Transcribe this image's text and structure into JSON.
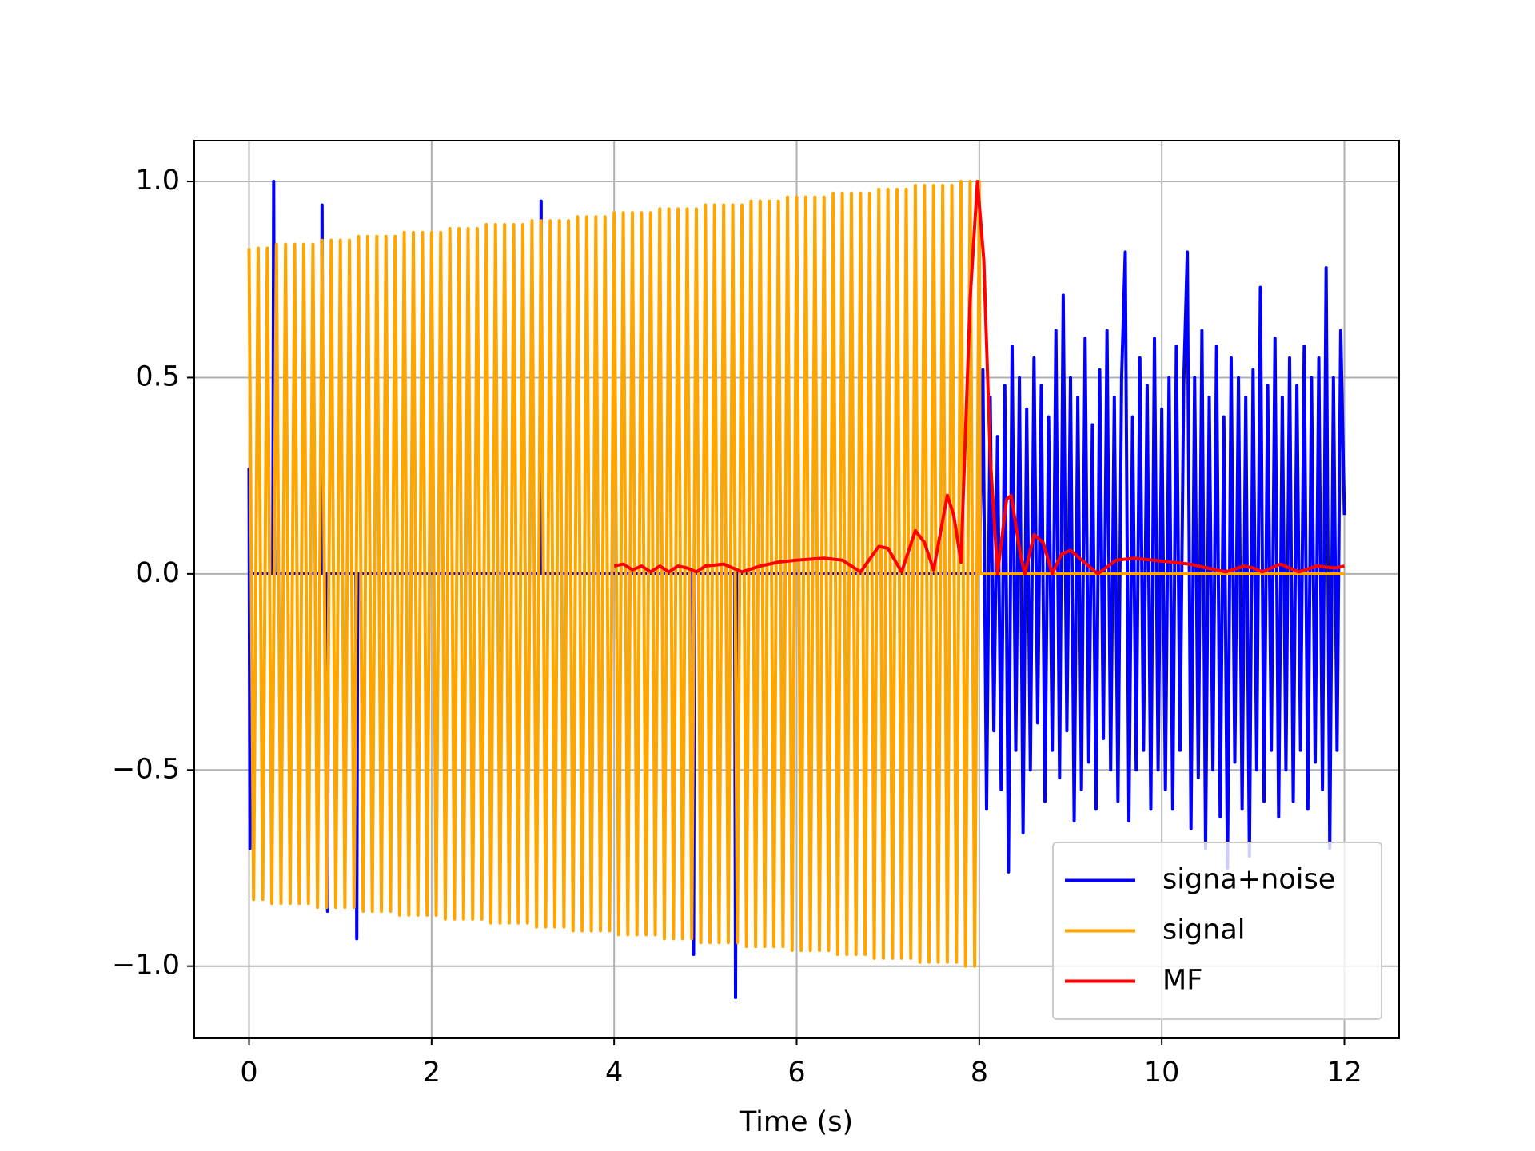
{
  "chart_data": {
    "type": "line",
    "xlabel": "Time (s)",
    "xlim": [
      -0.6,
      12.6
    ],
    "ylim": [
      -1.184,
      1.104
    ],
    "xticks": [
      0,
      2,
      4,
      6,
      8,
      10,
      12
    ],
    "yticks": [
      {
        "value": -1,
        "label": "−1.0"
      },
      {
        "value": -0.5,
        "label": "−0.5"
      },
      {
        "value": 0,
        "label": "0.0"
      },
      0.5,
      {
        "value": 1,
        "label": "1.0"
      }
    ],
    "grid": true,
    "legend": "lower right",
    "series": [
      {
        "name": "signa+noise",
        "color": "#0000ff",
        "x": [
          0,
          0.01,
          0.02,
          0.26,
          0.27,
          0.28,
          0.79,
          0.8,
          0.81,
          0.85,
          0.86,
          0.87,
          1.17,
          1.18,
          1.19,
          3.19,
          3.2,
          3.21,
          4.86,
          4.87,
          4.88,
          5.32,
          5.33,
          5.34,
          8.0,
          8.04,
          8.08,
          8.12,
          8.16,
          8.2,
          8.24,
          8.28,
          8.32,
          8.36,
          8.4,
          8.44,
          8.48,
          8.52,
          8.56,
          8.6,
          8.64,
          8.68,
          8.72,
          8.76,
          8.8,
          8.84,
          8.88,
          8.92,
          8.96,
          9.0,
          9.04,
          9.08,
          9.12,
          9.16,
          9.2,
          9.24,
          9.28,
          9.32,
          9.36,
          9.4,
          9.44,
          9.48,
          9.52,
          9.56,
          9.6,
          9.64,
          9.68,
          9.72,
          9.76,
          9.8,
          9.84,
          9.88,
          9.92,
          9.96,
          10.0,
          10.04,
          10.08,
          10.12,
          10.16,
          10.2,
          10.24,
          10.28,
          10.32,
          10.36,
          10.4,
          10.44,
          10.48,
          10.52,
          10.56,
          10.6,
          10.64,
          10.68,
          10.72,
          10.76,
          10.8,
          10.84,
          10.88,
          10.92,
          10.96,
          11.0,
          11.04,
          11.08,
          11.12,
          11.16,
          11.2,
          11.24,
          11.28,
          11.32,
          11.36,
          11.4,
          11.44,
          11.48,
          11.52,
          11.56,
          11.6,
          11.64,
          11.68,
          11.72,
          11.76,
          11.8,
          11.84,
          11.88,
          11.92,
          11.96,
          12.0
        ],
        "values": [
          0.27,
          -0.7,
          0,
          0,
          1.0,
          0,
          0,
          0.94,
          0,
          0,
          -0.86,
          0,
          0,
          -0.93,
          0,
          0,
          0.95,
          0,
          0,
          -0.97,
          0,
          0,
          -1.08,
          0,
          0,
          0.52,
          -0.6,
          0.45,
          -0.4,
          0.35,
          -0.55,
          0.48,
          -0.76,
          0.58,
          -0.45,
          0.5,
          -0.66,
          0.42,
          -0.5,
          0.55,
          -0.38,
          0.48,
          -0.58,
          0.4,
          -0.45,
          0.62,
          -0.52,
          0.71,
          -0.4,
          0.5,
          -0.63,
          0.45,
          -0.55,
          0.6,
          -0.48,
          0.38,
          -0.6,
          0.52,
          -0.42,
          0.62,
          -0.5,
          0.45,
          -0.58,
          0.5,
          0.82,
          -0.63,
          0.4,
          -0.5,
          0.55,
          -0.45,
          0.48,
          -0.6,
          0.6,
          -0.5,
          0.42,
          -0.55,
          0.5,
          -0.6,
          0.58,
          -0.45,
          0.48,
          0.82,
          -0.65,
          0.5,
          -0.52,
          0.62,
          -0.7,
          0.45,
          -0.5,
          0.58,
          -0.62,
          0.4,
          -0.75,
          0.55,
          -0.48,
          0.5,
          -0.6,
          0.45,
          -0.72,
          0.52,
          -0.5,
          0.73,
          -0.58,
          0.48,
          -0.45,
          0.6,
          -0.62,
          0.45,
          -0.5,
          0.55,
          -0.58,
          0.48,
          -0.45,
          0.58,
          -0.6,
          0.5,
          -0.48,
          0.55,
          -0.55,
          0.78,
          -0.7,
          0.5,
          -0.45,
          0.62,
          0.15
        ]
      },
      {
        "name": "signal",
        "color": "#ffa500",
        "x": [
          0,
          0.05,
          0.1,
          0.15,
          0.2,
          0.25,
          0.3,
          0.35,
          0.4,
          0.45,
          0.5,
          0.55,
          0.6,
          0.65,
          0.7,
          0.75,
          0.8,
          0.85,
          0.9,
          0.95,
          1.0,
          1.05,
          1.1,
          1.15,
          1.2,
          1.25,
          1.3,
          1.35,
          1.4,
          1.45,
          1.5,
          1.55,
          1.6,
          1.65,
          1.7,
          1.75,
          1.8,
          1.85,
          1.9,
          1.95,
          2.0,
          2.05,
          2.1,
          2.15,
          2.2,
          2.25,
          2.3,
          2.35,
          2.4,
          2.45,
          2.5,
          2.55,
          2.6,
          2.65,
          2.7,
          2.75,
          2.8,
          2.85,
          2.9,
          2.95,
          3.0,
          3.05,
          3.1,
          3.15,
          3.2,
          3.25,
          3.3,
          3.35,
          3.4,
          3.45,
          3.5,
          3.55,
          3.6,
          3.65,
          3.7,
          3.75,
          3.8,
          3.85,
          3.9,
          3.95,
          4.0,
          4.05,
          4.1,
          4.15,
          4.2,
          4.25,
          4.3,
          4.35,
          4.4,
          4.45,
          4.5,
          4.55,
          4.6,
          4.65,
          4.7,
          4.75,
          4.8,
          4.85,
          4.9,
          4.95,
          5.0,
          5.05,
          5.1,
          5.15,
          5.2,
          5.25,
          5.3,
          5.35,
          5.4,
          5.45,
          5.5,
          5.55,
          5.6,
          5.65,
          5.7,
          5.75,
          5.8,
          5.85,
          5.9,
          5.95,
          6.0,
          6.05,
          6.1,
          6.15,
          6.2,
          6.25,
          6.3,
          6.35,
          6.4,
          6.45,
          6.5,
          6.55,
          6.6,
          6.65,
          6.7,
          6.75,
          6.8,
          6.85,
          6.9,
          6.95,
          7.0,
          7.05,
          7.1,
          7.15,
          7.2,
          7.25,
          7.3,
          7.35,
          7.4,
          7.45,
          7.5,
          7.55,
          7.6,
          7.65,
          7.7,
          7.75,
          7.8,
          7.85,
          7.9,
          7.95,
          8.0,
          8.01,
          12.0
        ],
        "values": [
          0.83,
          -0.83,
          0.83,
          -0.83,
          0.83,
          -0.84,
          0.84,
          -0.84,
          0.84,
          -0.84,
          0.84,
          -0.84,
          0.84,
          -0.84,
          0.84,
          -0.85,
          0.85,
          -0.85,
          0.85,
          -0.85,
          0.85,
          -0.85,
          0.85,
          -0.85,
          0.86,
          -0.86,
          0.86,
          -0.86,
          0.86,
          -0.86,
          0.86,
          -0.86,
          0.86,
          -0.87,
          0.87,
          -0.87,
          0.87,
          -0.87,
          0.87,
          -0.87,
          0.87,
          -0.87,
          0.87,
          -0.88,
          0.88,
          -0.88,
          0.88,
          -0.88,
          0.88,
          -0.88,
          0.88,
          -0.88,
          0.89,
          -0.89,
          0.89,
          -0.89,
          0.89,
          -0.89,
          0.89,
          -0.89,
          0.89,
          -0.89,
          0.9,
          -0.9,
          0.9,
          -0.9,
          0.9,
          -0.9,
          0.9,
          -0.9,
          0.9,
          -0.91,
          0.91,
          -0.91,
          0.91,
          -0.91,
          0.91,
          -0.91,
          0.91,
          -0.91,
          0.92,
          -0.92,
          0.92,
          -0.92,
          0.92,
          -0.92,
          0.92,
          -0.92,
          0.92,
          -0.92,
          0.93,
          -0.93,
          0.93,
          -0.93,
          0.93,
          -0.93,
          0.93,
          -0.93,
          0.93,
          -0.94,
          0.94,
          -0.94,
          0.94,
          -0.94,
          0.94,
          -0.94,
          0.94,
          -0.94,
          0.94,
          -0.95,
          0.95,
          -0.95,
          0.95,
          -0.95,
          0.95,
          -0.95,
          0.95,
          -0.95,
          0.96,
          -0.96,
          0.96,
          -0.96,
          0.96,
          -0.96,
          0.96,
          -0.96,
          0.96,
          -0.96,
          0.97,
          -0.97,
          0.97,
          -0.97,
          0.97,
          -0.97,
          0.97,
          -0.97,
          0.97,
          -0.98,
          0.98,
          -0.98,
          0.98,
          -0.98,
          0.98,
          -0.98,
          0.98,
          -0.98,
          0.99,
          -0.99,
          0.99,
          -0.99,
          0.99,
          -0.99,
          0.99,
          -0.99,
          0.99,
          -0.99,
          1.0,
          -1.0,
          1.0,
          -1.0,
          1.0,
          0,
          0
        ]
      },
      {
        "name": "MF",
        "color": "#ff0000",
        "x": [
          4.0,
          4.1,
          4.2,
          4.3,
          4.4,
          4.5,
          4.6,
          4.7,
          4.8,
          4.9,
          5.0,
          5.2,
          5.4,
          5.6,
          5.8,
          6.0,
          6.3,
          6.5,
          6.7,
          6.9,
          7.0,
          7.15,
          7.3,
          7.4,
          7.5,
          7.65,
          7.72,
          7.8,
          7.9,
          7.98,
          8.05,
          8.12,
          8.2,
          8.3,
          8.35,
          8.45,
          8.5,
          8.6,
          8.7,
          8.8,
          8.9,
          9.0,
          9.1,
          9.3,
          9.5,
          9.7,
          9.9,
          10.1,
          10.3,
          10.5,
          10.7,
          10.9,
          11.0,
          11.1,
          11.3,
          11.5,
          11.7,
          11.9,
          12.0
        ],
        "values": [
          0.02,
          0.025,
          0.01,
          0.02,
          0.005,
          0.02,
          0.005,
          0.02,
          0.015,
          0.005,
          0.02,
          0.025,
          0.005,
          0.02,
          0.03,
          0.035,
          0.04,
          0.035,
          0.005,
          0.07,
          0.065,
          0.005,
          0.11,
          0.08,
          0.01,
          0.2,
          0.15,
          0.03,
          0.7,
          1.0,
          0.8,
          0.3,
          0.0,
          0.19,
          0.2,
          0.05,
          0.0,
          0.1,
          0.08,
          0.0,
          0.05,
          0.06,
          0.04,
          0.0,
          0.035,
          0.04,
          0.035,
          0.03,
          0.025,
          0.015,
          0.005,
          0.02,
          0.015,
          0.005,
          0.025,
          0.005,
          0.02,
          0.015,
          0.02
        ]
      }
    ]
  }
}
